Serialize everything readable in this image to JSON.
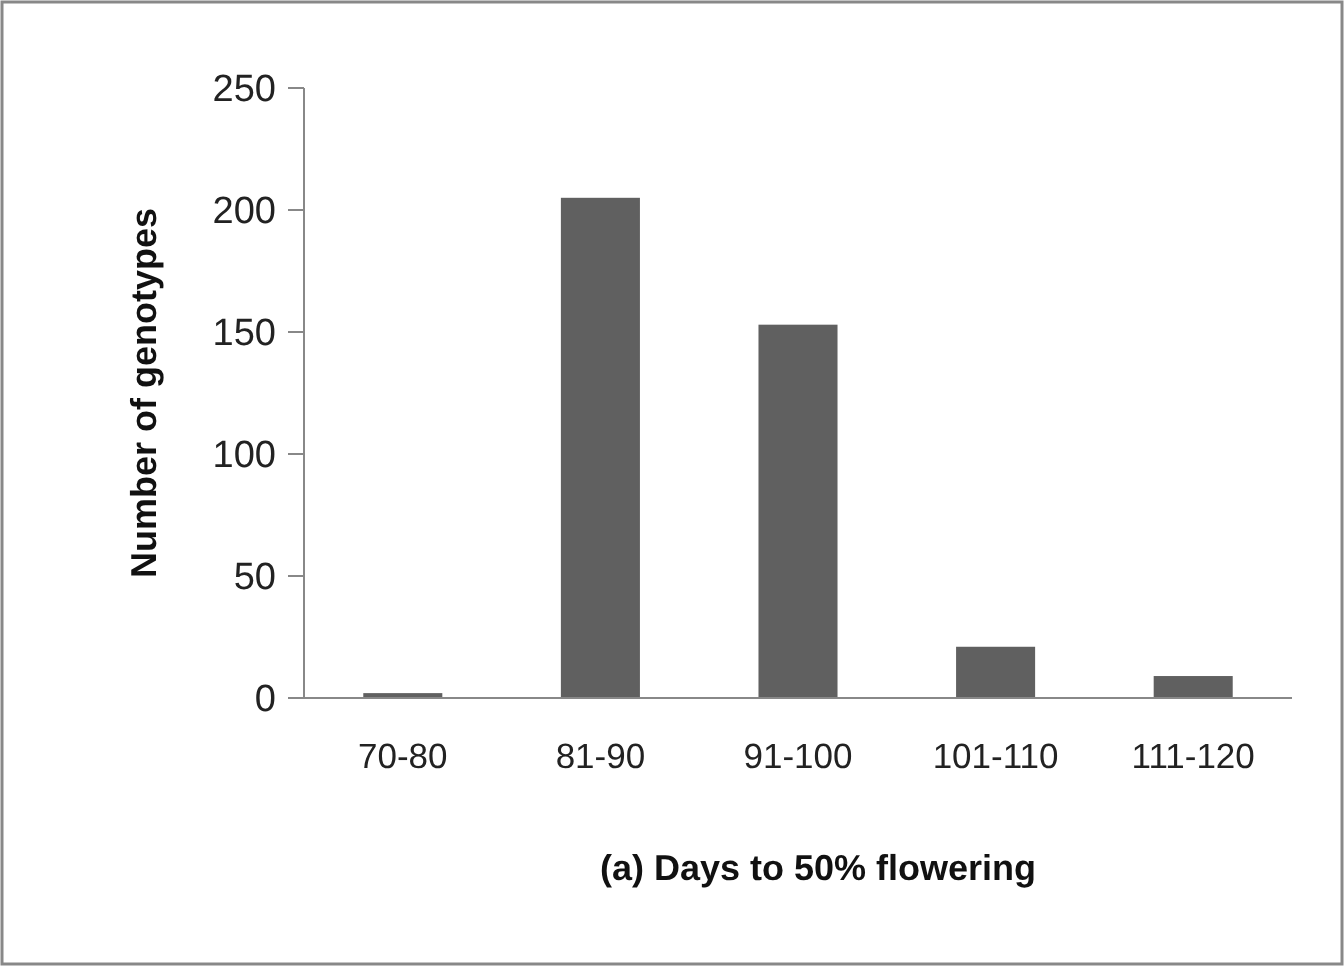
{
  "chart_data": {
    "type": "bar",
    "xlabel": "(a) Days to 50% flowering",
    "ylabel": "Number of genotypes",
    "categories": [
      "70-80",
      "81-90",
      "91-100",
      "101-110",
      "111-120"
    ],
    "values": [
      2,
      205,
      153,
      21,
      9
    ],
    "color": "#606060",
    "ylim": [
      0,
      250
    ],
    "yticks": [
      0,
      50,
      100,
      150,
      200,
      250
    ],
    "grid": false
  }
}
